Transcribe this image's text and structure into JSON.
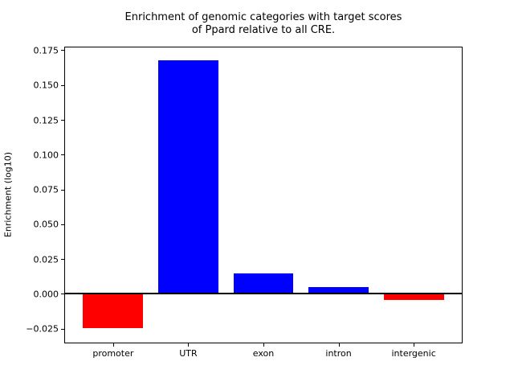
{
  "chart_data": {
    "type": "bar",
    "title": "Enrichment of genomic categories with target scores\nof Ppard relative to all CRE.",
    "xlabel": "",
    "ylabel": "Enrichment (log10)",
    "categories": [
      "promoter",
      "UTR",
      "exon",
      "intron",
      "intergenic"
    ],
    "values": [
      -0.0245,
      0.168,
      0.0145,
      0.005,
      -0.0045
    ],
    "bar_colors": [
      "#ff0000",
      "#0000ff",
      "#0000ff",
      "#0000ff",
      "#ff0000"
    ],
    "positive_color": "#0000ff",
    "negative_color": "#ff0000",
    "bar_width": 0.8,
    "xlim": [
      -0.64,
      4.64
    ],
    "ylim": [
      -0.035,
      0.177
    ],
    "yticks": [
      -0.025,
      0.0,
      0.025,
      0.05,
      0.075,
      0.1,
      0.125,
      0.15,
      0.175
    ],
    "ytick_labels": [
      "−0.025",
      "0.000",
      "0.025",
      "0.050",
      "0.075",
      "0.100",
      "0.125",
      "0.150",
      "0.175"
    ],
    "grid": false,
    "zero_line": true,
    "legend": null,
    "axis_color": "#000000",
    "background_color": "#ffffff"
  }
}
